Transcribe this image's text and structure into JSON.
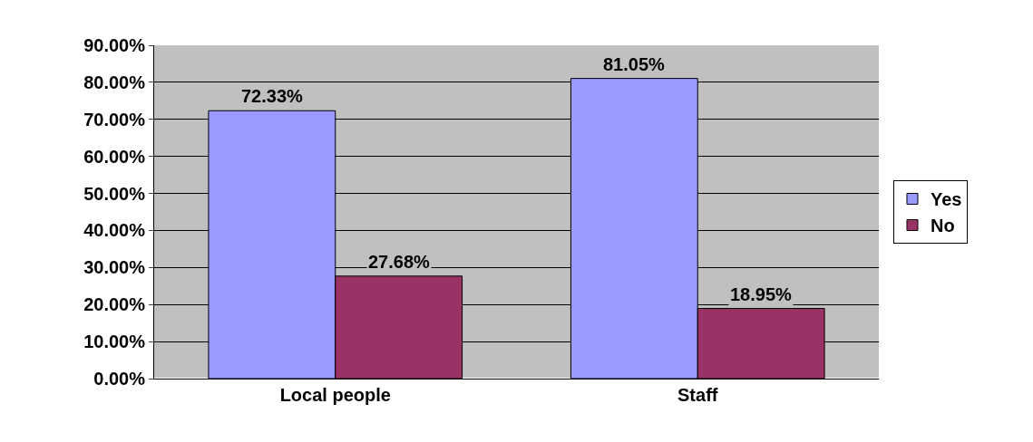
{
  "chart_data": {
    "type": "bar",
    "categories": [
      "Local people",
      "Staff"
    ],
    "series": [
      {
        "name": "Yes",
        "color": "#9999ff",
        "values": [
          72.33,
          81.05
        ],
        "value_labels": [
          "72.33%",
          "81.05%"
        ]
      },
      {
        "name": "No",
        "color": "#993366",
        "values": [
          27.68,
          18.95
        ],
        "value_labels": [
          "27.68%",
          "18.95%"
        ]
      }
    ],
    "ylim": [
      0,
      90
    ],
    "yticks": [
      {
        "value": 0,
        "label": "0.00%"
      },
      {
        "value": 10,
        "label": "10.00%"
      },
      {
        "value": 20,
        "label": "20.00%"
      },
      {
        "value": 30,
        "label": "30.00%"
      },
      {
        "value": 40,
        "label": "40.00%"
      },
      {
        "value": 50,
        "label": "50.00%"
      },
      {
        "value": 60,
        "label": "60.00%"
      },
      {
        "value": 70,
        "label": "70.00%"
      },
      {
        "value": 80,
        "label": "80.00%"
      },
      {
        "value": 90,
        "label": "90.00%"
      }
    ],
    "grid": "y",
    "legend": "right"
  }
}
